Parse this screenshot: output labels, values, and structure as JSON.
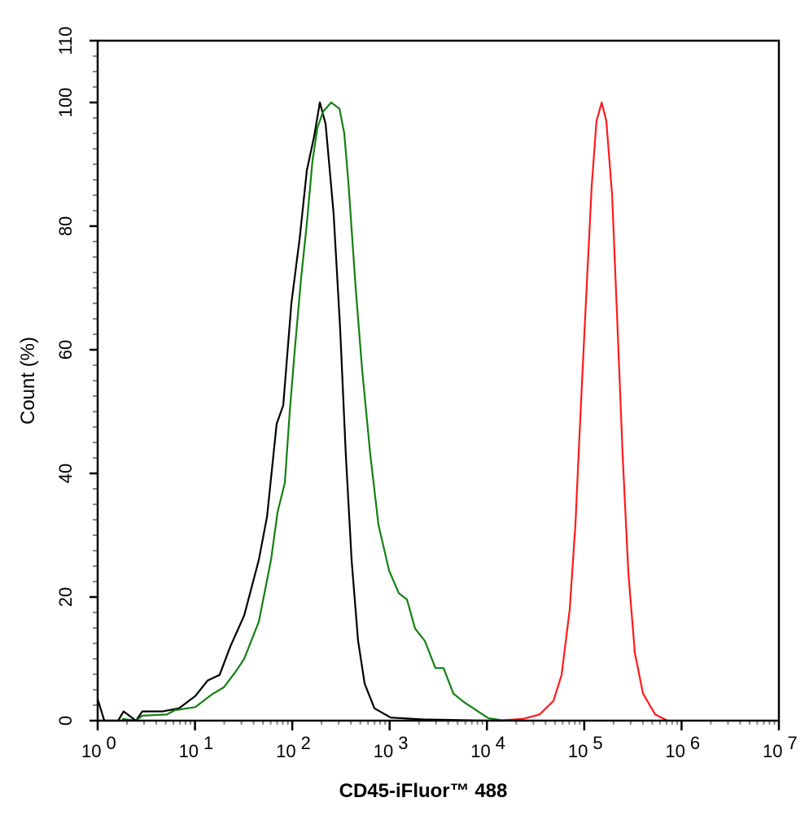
{
  "chart_data": {
    "type": "line",
    "title": "",
    "xlabel": "CD45-iFluor™ 488",
    "ylabel": "Count  (%)",
    "x_scale": "log",
    "xlim": [
      1,
      10000000
    ],
    "ylim": [
      0,
      110
    ],
    "grid": false,
    "x_ticks": [
      {
        "base": "10",
        "exp": "0",
        "value": 1
      },
      {
        "base": "10",
        "exp": "1",
        "value": 10
      },
      {
        "base": "10",
        "exp": "2",
        "value": 100
      },
      {
        "base": "10",
        "exp": "3",
        "value": 1000
      },
      {
        "base": "10",
        "exp": "4",
        "value": 10000
      },
      {
        "base": "10",
        "exp": "5",
        "value": 100000
      },
      {
        "base": "10",
        "exp": "6",
        "value": 1000000
      },
      {
        "base": "10",
        "exp": "7",
        "value": 10000000
      }
    ],
    "y_ticks": [
      "0",
      "20",
      "40",
      "60",
      "80",
      "100",
      "110"
    ],
    "series": [
      {
        "color": "#000000",
        "x": [
          1,
          1.17,
          1.62,
          1.85,
          2.47,
          2.88,
          4.67,
          6.86,
          10.1,
          13.5,
          17.9,
          23.1,
          32,
          45.3,
          55,
          69,
          80.7,
          97.8,
          119,
          141,
          168,
          192,
          220,
          266,
          310,
          355,
          407,
          474,
          553,
          698,
          1025,
          2215,
          10330
        ],
        "y": [
          3.5,
          0,
          0,
          1.5,
          0,
          1.5,
          1.5,
          2,
          4,
          6.5,
          7.4,
          12,
          17,
          26,
          33,
          48,
          51,
          67.5,
          78,
          89,
          94.6,
          100,
          96.5,
          82,
          63.5,
          43,
          26,
          13,
          6,
          2,
          0.5,
          0.2,
          0
        ]
      },
      {
        "color": "#138013",
        "x": [
          1.78,
          2.47,
          2.88,
          5.14,
          6.23,
          10.1,
          14.8,
          19.8,
          26.4,
          32,
          45.3,
          60.5,
          70.5,
          83.9,
          94.2,
          106,
          123,
          141,
          161,
          181,
          207,
          251,
          305,
          342,
          377,
          448,
          522,
          634,
          768,
          987,
          1245,
          1508,
          1827,
          2302,
          2958,
          3585,
          4518,
          5800,
          7742,
          10330,
          15180
        ],
        "y": [
          0.3,
          0,
          0.8,
          1,
          1.7,
          2.2,
          4.2,
          5.4,
          8,
          10,
          16,
          26,
          33.7,
          38.5,
          50,
          60,
          71.5,
          80.4,
          90.5,
          95.9,
          98.5,
          100,
          99,
          95,
          87,
          70,
          56.7,
          43,
          31.7,
          24.3,
          20.6,
          19.6,
          14.9,
          12.9,
          8.5,
          8.5,
          4.4,
          3,
          1.7,
          0.4,
          0
        ]
      },
      {
        "color": "#ff1a1a",
        "x": [
          12530,
          23660,
          34770,
          48240,
          58450,
          70930,
          81140,
          91150,
          104200,
          119200,
          133700,
          151100,
          168600,
          193200,
          216800,
          247800,
          283800,
          331100,
          401000,
          535200,
          714700
        ],
        "y": [
          0,
          0.3,
          1,
          3.2,
          7.4,
          18,
          31.7,
          49,
          68,
          86.5,
          97,
          100,
          97,
          85,
          66,
          43,
          24,
          11,
          4.4,
          1,
          0
        ]
      }
    ]
  }
}
